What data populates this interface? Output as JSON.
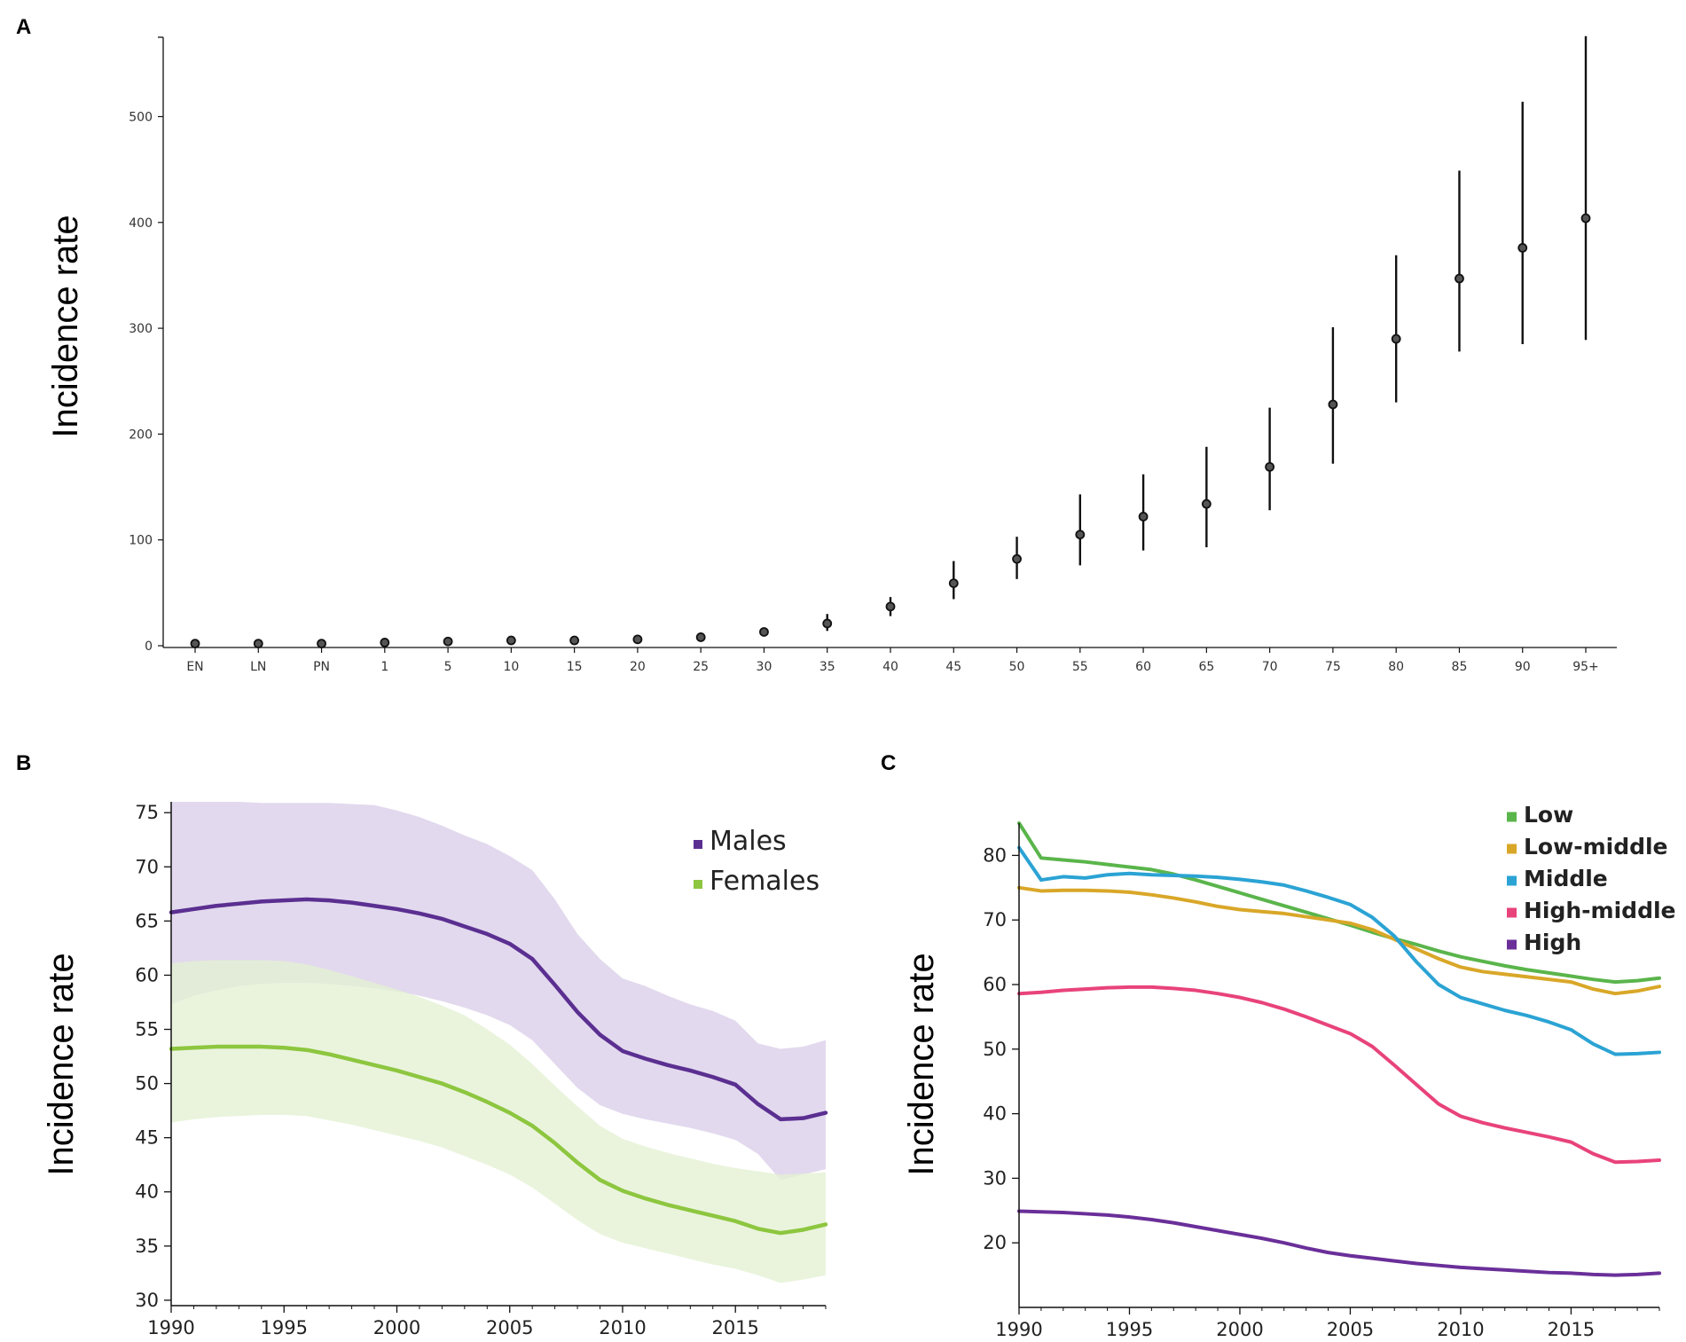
{
  "chart_data": [
    {
      "panel": "A",
      "type": "scatter",
      "ylabel": "Incidence rate",
      "xlabel": "",
      "ylim": [
        0,
        575
      ],
      "yticks": [
        0,
        100,
        200,
        300,
        400,
        500
      ],
      "categories": [
        "EN",
        "LN",
        "PN",
        "1",
        "5",
        "10",
        "15",
        "20",
        "25",
        "30",
        "35",
        "40",
        "45",
        "50",
        "55",
        "60",
        "65",
        "70",
        "75",
        "80",
        "85",
        "90",
        "95+"
      ],
      "values": [
        2,
        2,
        2,
        3,
        4,
        5,
        5,
        6,
        8,
        13,
        21,
        37,
        59,
        82,
        105,
        122,
        134,
        169,
        228,
        290,
        347,
        376,
        404
      ],
      "lower": [
        2,
        2,
        2,
        3,
        4,
        5,
        5,
        6,
        8,
        12,
        14,
        28,
        44,
        63,
        76,
        90,
        93,
        128,
        172,
        230,
        278,
        285,
        289
      ],
      "upper": [
        2,
        2,
        2,
        3,
        4,
        5,
        5,
        6,
        8,
        15,
        30,
        46,
        80,
        103,
        143,
        162,
        188,
        225,
        301,
        369,
        449,
        514,
        576
      ]
    },
    {
      "panel": "B",
      "type": "line",
      "ylabel": "Incidence rate",
      "xlabel": "",
      "xlim": [
        1990,
        2019
      ],
      "ylim": [
        29.5,
        76
      ],
      "yticks": [
        30,
        35,
        40,
        45,
        50,
        55,
        60,
        65,
        70,
        75
      ],
      "xticks": [
        1990,
        1995,
        2000,
        2005,
        2010,
        2015
      ],
      "x": [
        1990,
        1991,
        1992,
        1993,
        1994,
        1995,
        1996,
        1997,
        1998,
        1999,
        2000,
        2001,
        2002,
        2003,
        2004,
        2005,
        2006,
        2007,
        2008,
        2009,
        2010,
        2011,
        2012,
        2013,
        2014,
        2015,
        2016,
        2017,
        2018,
        2019
      ],
      "series": [
        {
          "name": "Males",
          "color": "#5b2f91",
          "band_color": "#d8cce8",
          "values": [
            65.8,
            66.1,
            66.4,
            66.6,
            66.8,
            66.9,
            67.0,
            66.9,
            66.7,
            66.4,
            66.1,
            65.7,
            65.2,
            64.5,
            63.8,
            62.9,
            61.5,
            59.1,
            56.6,
            54.5,
            53.0,
            52.3,
            51.7,
            51.2,
            50.6,
            49.9,
            48.1,
            46.7,
            46.8,
            47.3
          ],
          "lower": [
            57.3,
            58.1,
            58.6,
            59.0,
            59.2,
            59.3,
            59.3,
            59.2,
            59.0,
            58.8,
            58.5,
            58.1,
            57.6,
            57.0,
            56.3,
            55.4,
            54.0,
            51.8,
            49.6,
            48.0,
            47.2,
            46.7,
            46.3,
            45.9,
            45.4,
            44.8,
            43.5,
            41.1,
            41.6,
            42.1
          ],
          "upper": [
            76.0,
            76.0,
            76.0,
            76.0,
            75.9,
            75.9,
            75.9,
            75.9,
            75.8,
            75.7,
            75.2,
            74.6,
            73.8,
            72.9,
            72.1,
            71.0,
            69.7,
            67.0,
            63.8,
            61.5,
            59.7,
            59.0,
            58.1,
            57.3,
            56.7,
            55.8,
            53.7,
            53.2,
            53.4,
            54.0
          ]
        },
        {
          "name": "Females",
          "color": "#8dc63f",
          "band_color": "#e3f0d2",
          "values": [
            53.2,
            53.3,
            53.4,
            53.4,
            53.4,
            53.3,
            53.1,
            52.7,
            52.2,
            51.7,
            51.2,
            50.6,
            50.0,
            49.2,
            48.3,
            47.3,
            46.1,
            44.5,
            42.7,
            41.1,
            40.1,
            39.4,
            38.8,
            38.3,
            37.8,
            37.3,
            36.6,
            36.2,
            36.5,
            37.0
          ],
          "lower": [
            46.4,
            46.7,
            46.9,
            47.0,
            47.1,
            47.1,
            47.0,
            46.6,
            46.2,
            45.7,
            45.2,
            44.7,
            44.1,
            43.3,
            42.5,
            41.6,
            40.4,
            38.9,
            37.4,
            36.1,
            35.3,
            34.8,
            34.3,
            33.8,
            33.3,
            32.9,
            32.3,
            31.6,
            31.9,
            32.3
          ],
          "upper": [
            61.1,
            61.3,
            61.4,
            61.4,
            61.4,
            61.3,
            61.0,
            60.5,
            59.9,
            59.3,
            58.7,
            58.0,
            57.2,
            56.3,
            55.0,
            53.6,
            51.8,
            49.8,
            47.9,
            46.1,
            44.9,
            44.2,
            43.6,
            43.1,
            42.6,
            42.2,
            41.9,
            41.6,
            41.7,
            41.8
          ]
        }
      ],
      "legend": "top-right"
    },
    {
      "panel": "C",
      "type": "line",
      "ylabel": "Incidence rate",
      "xlabel": "",
      "xlim": [
        1990,
        2019
      ],
      "ylim": [
        10,
        85
      ],
      "yticks": [
        20,
        30,
        40,
        50,
        60,
        70,
        80
      ],
      "xticks": [
        1990,
        1995,
        2000,
        2005,
        2010,
        2015
      ],
      "x": [
        1990,
        1991,
        1992,
        1993,
        1994,
        1995,
        1996,
        1997,
        1998,
        1999,
        2000,
        2001,
        2002,
        2003,
        2004,
        2005,
        2006,
        2007,
        2008,
        2009,
        2010,
        2011,
        2012,
        2013,
        2014,
        2015,
        2016,
        2017,
        2018,
        2019
      ],
      "series": [
        {
          "name": "Low",
          "color": "#5ab54b",
          "values": [
            85.0,
            79.6,
            79.3,
            79.0,
            78.6,
            78.2,
            77.8,
            77.1,
            76.2,
            75.2,
            74.2,
            73.2,
            72.2,
            71.2,
            70.2,
            69.2,
            68.1,
            67.1,
            66.2,
            65.2,
            64.3,
            63.6,
            62.9,
            62.3,
            61.8,
            61.3,
            60.8,
            60.4,
            60.6,
            61.0
          ]
        },
        {
          "name": "Low-middle",
          "color": "#d9a728",
          "values": [
            75.0,
            74.5,
            74.6,
            74.6,
            74.5,
            74.3,
            73.9,
            73.4,
            72.8,
            72.1,
            71.6,
            71.3,
            71.0,
            70.5,
            70.0,
            69.5,
            68.5,
            67.0,
            65.5,
            64.0,
            62.7,
            62.0,
            61.6,
            61.2,
            60.8,
            60.4,
            59.3,
            58.6,
            59.0,
            59.7
          ]
        },
        {
          "name": "Middle",
          "color": "#2ba3d4",
          "values": [
            81.2,
            76.2,
            76.7,
            76.5,
            77.0,
            77.2,
            77.0,
            76.9,
            76.8,
            76.6,
            76.3,
            75.9,
            75.4,
            74.5,
            73.5,
            72.4,
            70.4,
            67.5,
            63.5,
            60.0,
            58.0,
            57.0,
            56.0,
            55.2,
            54.2,
            53.0,
            50.8,
            49.2,
            49.3,
            49.5
          ]
        },
        {
          "name": "High-middle",
          "color": "#e8437a",
          "values": [
            58.6,
            58.8,
            59.1,
            59.3,
            59.5,
            59.6,
            59.6,
            59.4,
            59.1,
            58.6,
            58.0,
            57.2,
            56.2,
            55.0,
            53.7,
            52.4,
            50.4,
            47.5,
            44.5,
            41.5,
            39.6,
            38.6,
            37.8,
            37.1,
            36.4,
            35.6,
            33.8,
            32.5,
            32.6,
            32.8
          ]
        },
        {
          "name": "High",
          "color": "#6a2f99",
          "values": [
            24.9,
            24.8,
            24.7,
            24.5,
            24.3,
            24.0,
            23.6,
            23.1,
            22.5,
            21.9,
            21.3,
            20.7,
            20.0,
            19.2,
            18.5,
            18.0,
            17.6,
            17.2,
            16.8,
            16.5,
            16.2,
            16.0,
            15.8,
            15.6,
            15.4,
            15.3,
            15.1,
            15.0,
            15.1,
            15.3
          ]
        }
      ],
      "legend": "top-right"
    }
  ]
}
